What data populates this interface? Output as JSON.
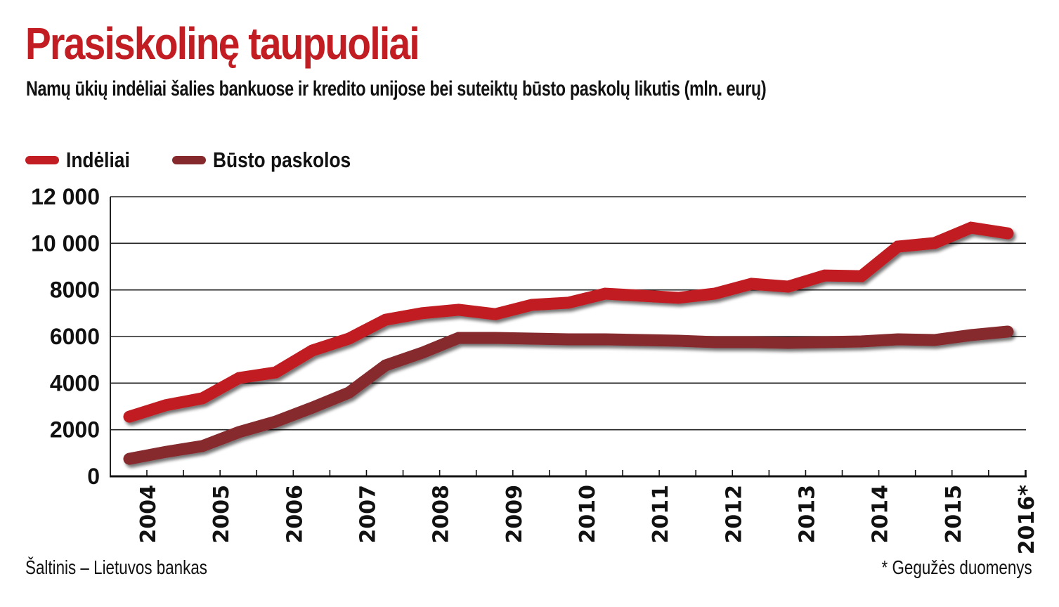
{
  "header": {
    "title": "Prasiskolinę taupuoliai",
    "subtitle": "Namų ūkių indėliai šalies bankuose ir kredito unijose bei suteiktų būsto paskolų likutis (mln. eurų)"
  },
  "legend": [
    {
      "label": "Indėliai",
      "color": "#c11d22"
    },
    {
      "label": "Būsto paskolos",
      "color": "#86292d"
    }
  ],
  "footer": {
    "source": "Šaltinis – Lietuvos bankas",
    "note": "* Gegužės duomenys"
  },
  "chart_data": {
    "type": "line",
    "title": "Prasiskolinę taupuoliai",
    "subtitle": "Namų ūkių indėliai šalies bankuose ir kredito unijose bei suteiktų būsto paskolų likutis (mln. eurų)",
    "xlabel": "",
    "ylabel": "",
    "ylim": [
      0,
      12000
    ],
    "yticks": [
      0,
      2000,
      4000,
      6000,
      8000,
      10000,
      12000
    ],
    "ytick_labels": [
      "0",
      "2000",
      "4000",
      "6000",
      "8000",
      "10 000",
      "12 000"
    ],
    "xtick_labels": [
      "2004",
      "2005",
      "2006",
      "2007",
      "2008",
      "2009",
      "2010",
      "2011",
      "2012",
      "2013",
      "2014",
      "2015",
      "2016*"
    ],
    "grid": true,
    "legend_position": "top-left",
    "x": [
      2003.75,
      2004.25,
      2004.75,
      2005.25,
      2005.75,
      2006.25,
      2006.75,
      2007.25,
      2007.75,
      2008.25,
      2008.75,
      2009.25,
      2009.75,
      2010.25,
      2010.75,
      2011.25,
      2011.75,
      2012.25,
      2012.75,
      2013.25,
      2013.75,
      2014.25,
      2014.75,
      2015.25,
      2015.75
    ],
    "series": [
      {
        "name": "Indėliai",
        "color": "#c11d22",
        "values": [
          2560,
          3050,
          3350,
          4220,
          4460,
          5400,
          5910,
          6720,
          7000,
          7150,
          6960,
          7360,
          7450,
          7840,
          7750,
          7660,
          7840,
          8260,
          8140,
          8620,
          8590,
          9860,
          10010,
          10670,
          10430
        ]
      },
      {
        "name": "Būsto paskolos",
        "color": "#86292d",
        "values": [
          750,
          1050,
          1300,
          1900,
          2350,
          2950,
          3590,
          4760,
          5300,
          5940,
          5940,
          5910,
          5880,
          5880,
          5850,
          5820,
          5760,
          5760,
          5730,
          5760,
          5790,
          5880,
          5850,
          6060,
          6210
        ]
      }
    ],
    "annotations": [
      "* Gegužės duomenys"
    ],
    "source": "Šaltinis – Lietuvos bankas"
  }
}
